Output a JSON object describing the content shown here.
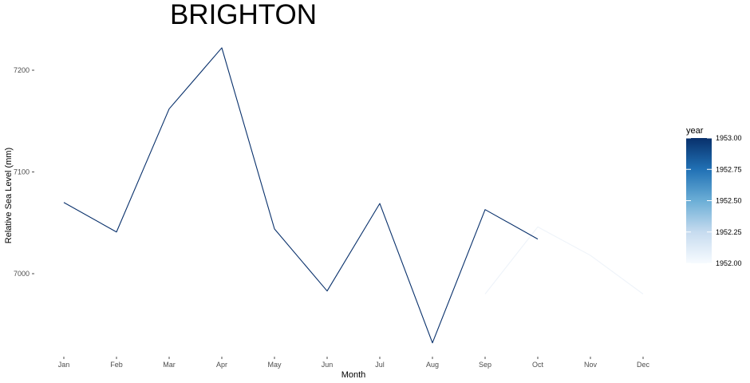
{
  "chart_data": {
    "type": "line",
    "title": "BRIGHTON",
    "xlabel": "Month",
    "ylabel": "Relative Sea Level (mm)",
    "categories": [
      "Jan",
      "Feb",
      "Mar",
      "Apr",
      "May",
      "Jun",
      "Jul",
      "Aug",
      "Sep",
      "Oct",
      "Nov",
      "Dec"
    ],
    "yticks": [
      7000,
      7100,
      7200
    ],
    "ylim": [
      6930,
      7224
    ],
    "grid": false,
    "series": [
      {
        "year": 1952,
        "color": "#f7fbff",
        "values": [
          null,
          null,
          null,
          null,
          null,
          null,
          null,
          null,
          6980,
          7046,
          7018,
          6980
        ]
      },
      {
        "year": 1953,
        "color": "#08306b",
        "values": [
          7070,
          7041,
          7162,
          7222,
          7044,
          6983,
          7069,
          6932,
          7063,
          7034,
          null,
          null
        ]
      }
    ],
    "legend": {
      "title": "year",
      "position": "right",
      "colorbar": [
        "#f7fbff",
        "#c6dbef",
        "#6baed6",
        "#2171b5",
        "#08306b"
      ],
      "range": [
        1952.0,
        1953.0
      ],
      "labels": [
        "1953.00",
        "1952.75",
        "1952.50",
        "1952.25",
        "1952.00"
      ]
    }
  }
}
